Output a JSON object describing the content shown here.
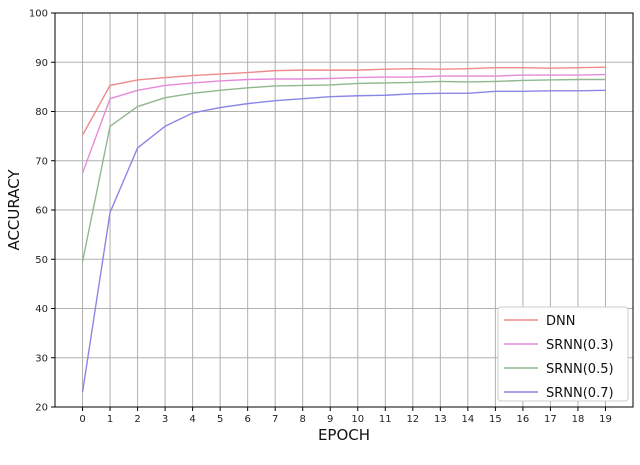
{
  "chart_data": {
    "type": "line",
    "xlabel": "EPOCH",
    "ylabel": "ACCURACY",
    "x": [
      0,
      1,
      2,
      3,
      4,
      5,
      6,
      7,
      8,
      9,
      10,
      11,
      12,
      13,
      14,
      15,
      16,
      17,
      18,
      19
    ],
    "xlim": [
      -1,
      20
    ],
    "ylim": [
      20,
      100
    ],
    "yticks": [
      20,
      30,
      40,
      50,
      60,
      70,
      80,
      90,
      100
    ],
    "xticks": [
      0,
      1,
      2,
      3,
      4,
      5,
      6,
      7,
      8,
      9,
      10,
      11,
      12,
      13,
      14,
      15,
      16,
      17,
      18,
      19
    ],
    "grid": true,
    "legend_position": "bottom-right",
    "series": [
      {
        "name": "DNN",
        "color": "#f08a8a",
        "values": [
          75.2,
          85.3,
          86.4,
          86.9,
          87.3,
          87.6,
          87.9,
          88.3,
          88.4,
          88.4,
          88.4,
          88.6,
          88.7,
          88.6,
          88.7,
          88.9,
          88.9,
          88.8,
          88.9,
          89.0
        ]
      },
      {
        "name": "SRNN(0.3)",
        "color": "#e58ad8",
        "values": [
          67.5,
          82.6,
          84.3,
          85.3,
          85.8,
          86.2,
          86.5,
          86.6,
          86.6,
          86.7,
          86.9,
          87.0,
          87.0,
          87.2,
          87.2,
          87.2,
          87.4,
          87.4,
          87.4,
          87.5
        ]
      },
      {
        "name": "SRNN(0.5)",
        "color": "#8fb88f",
        "values": [
          49.5,
          77.0,
          81.0,
          82.8,
          83.7,
          84.3,
          84.8,
          85.2,
          85.3,
          85.4,
          85.7,
          85.8,
          85.9,
          86.1,
          86.0,
          86.1,
          86.3,
          86.4,
          86.5,
          86.5
        ]
      },
      {
        "name": "SRNN(0.7)",
        "color": "#8a86e6",
        "values": [
          23.0,
          59.5,
          72.6,
          77.0,
          79.7,
          80.8,
          81.6,
          82.2,
          82.6,
          83.0,
          83.2,
          83.3,
          83.6,
          83.7,
          83.7,
          84.1,
          84.1,
          84.2,
          84.2,
          84.3
        ]
      }
    ]
  }
}
